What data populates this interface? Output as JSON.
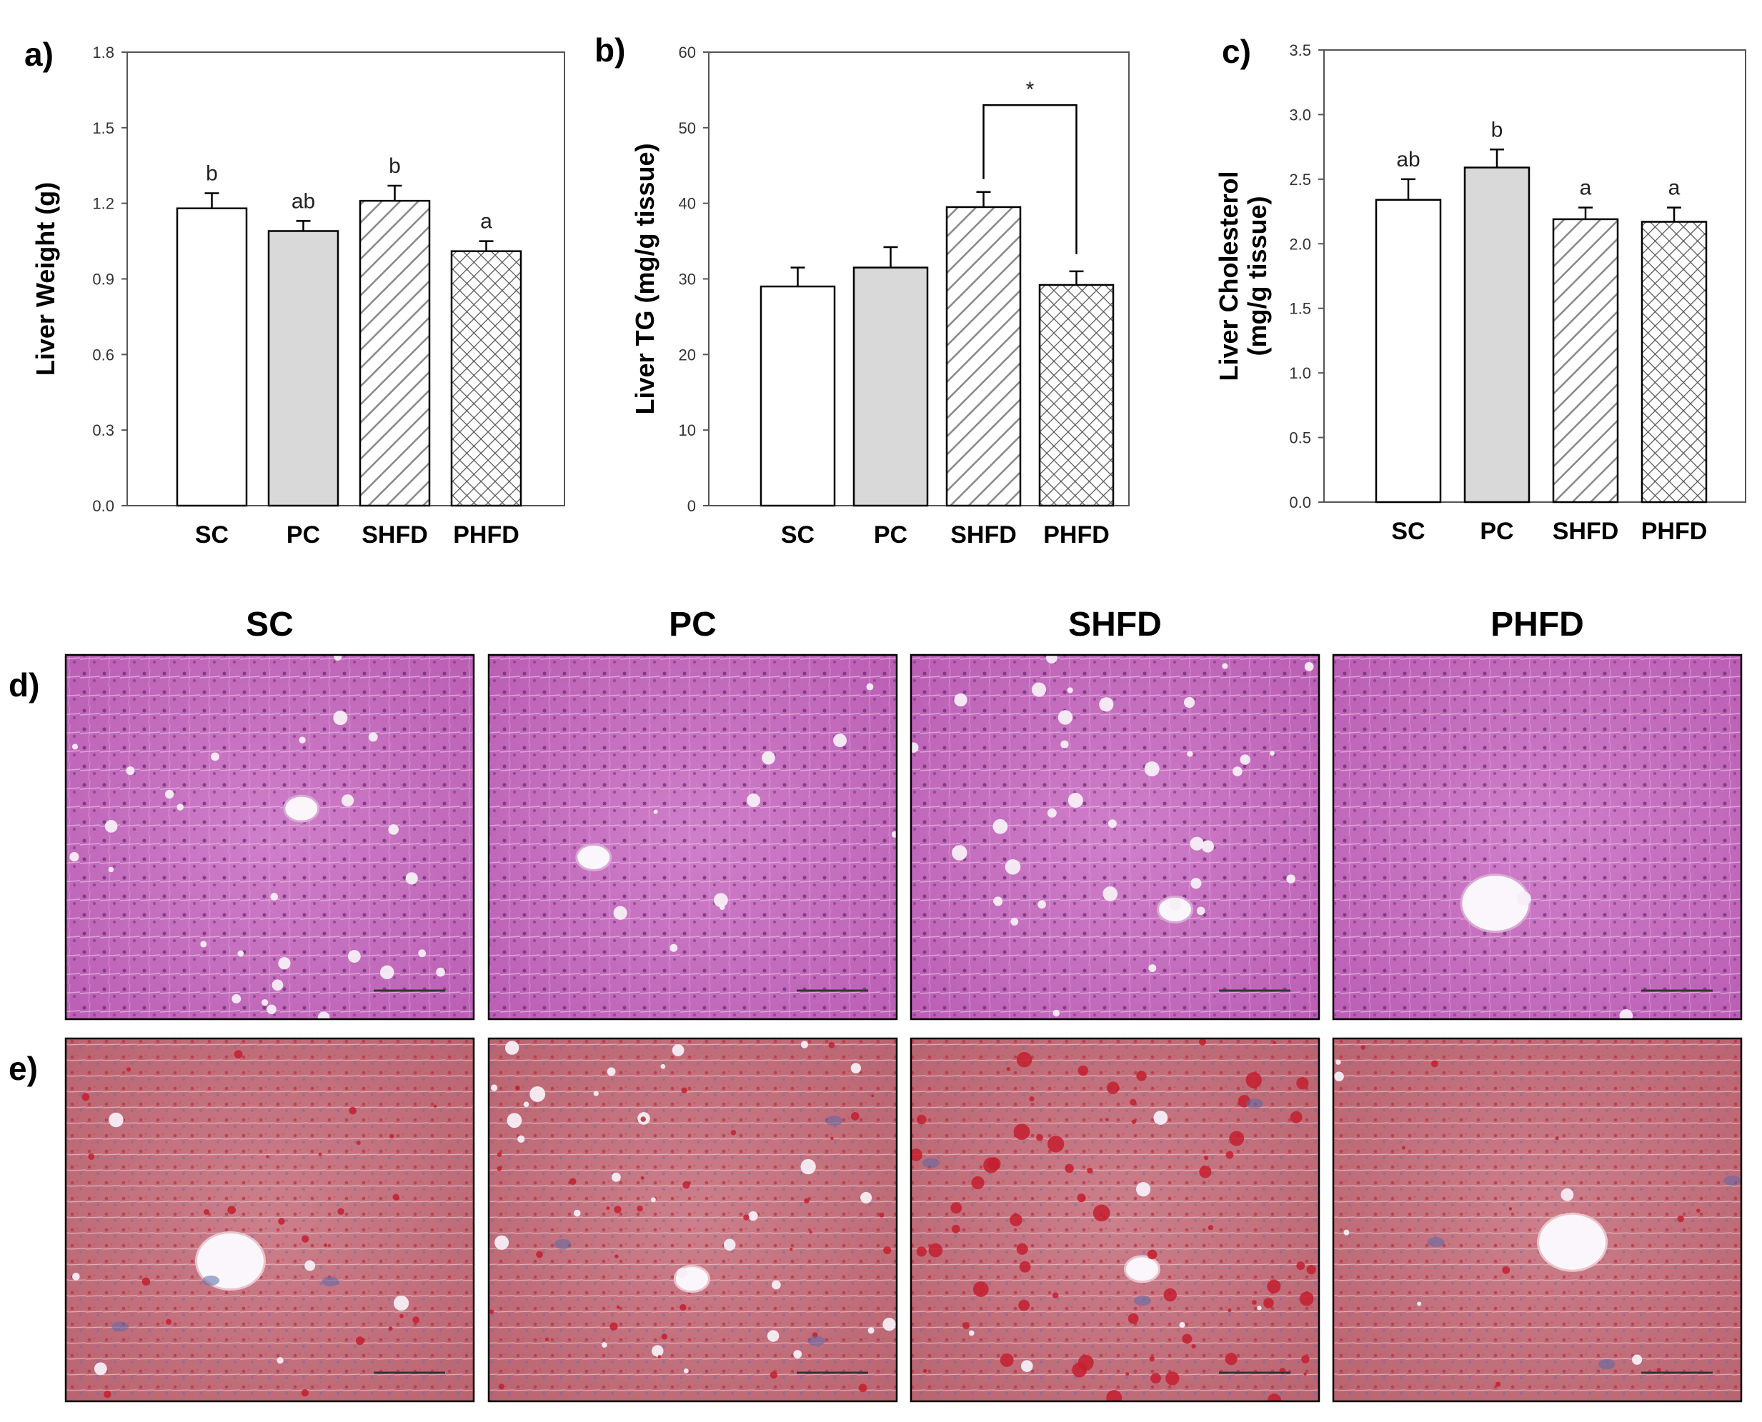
{
  "chart_data": [
    {
      "type": "bar",
      "panel": "a)",
      "ylabel": "Liver Weight (g)",
      "categories": [
        "SC",
        "PC",
        "SHFD",
        "PHFD"
      ],
      "values": [
        1.18,
        1.09,
        1.21,
        1.01
      ],
      "errors": [
        0.06,
        0.04,
        0.06,
        0.04
      ],
      "significance": [
        "b",
        "ab",
        "b",
        "a"
      ],
      "yticks": [
        "0.0",
        "0.3",
        "0.6",
        "0.9",
        "1.2",
        "1.5",
        "1.8"
      ],
      "ylim": [
        0,
        1.8
      ],
      "fills": [
        "white",
        "gray",
        "diagonal",
        "crosshatch"
      ]
    },
    {
      "type": "bar",
      "panel": "b)",
      "ylabel": "Liver TG (mg/g tissue)",
      "categories": [
        "SC",
        "PC",
        "SHFD",
        "PHFD"
      ],
      "values": [
        29,
        31.5,
        39.5,
        29.2
      ],
      "errors": [
        2.5,
        2.7,
        2.0,
        1.8
      ],
      "bracket": {
        "from": 2,
        "to": 3,
        "label": "*",
        "y": 53
      },
      "yticks": [
        "0",
        "10",
        "20",
        "30",
        "40",
        "50",
        "60"
      ],
      "ylim": [
        0,
        60
      ],
      "fills": [
        "white",
        "gray",
        "diagonal",
        "crosshatch"
      ]
    },
    {
      "type": "bar",
      "panel": "c)",
      "ylabel": "Liver Cholesterol",
      "ylabel2": "(mg/g tissue)",
      "categories": [
        "SC",
        "PC",
        "SHFD",
        "PHFD"
      ],
      "values": [
        2.34,
        2.59,
        2.19,
        2.17
      ],
      "errors": [
        0.16,
        0.14,
        0.09,
        0.11
      ],
      "significance": [
        "ab",
        "b",
        "a",
        "a"
      ],
      "yticks": [
        "0.0",
        "0.5",
        "1.0",
        "1.5",
        "2.0",
        "2.5",
        "3.0",
        "3.5"
      ],
      "ylim": [
        0,
        3.5
      ],
      "fills": [
        "white",
        "gray",
        "diagonal",
        "crosshatch"
      ]
    }
  ],
  "histology": {
    "columns": [
      "SC",
      "PC",
      "SHFD",
      "PHFD"
    ],
    "rows": [
      {
        "label": "d)",
        "stain": "hematoxylin-eosin",
        "colors": {
          "base": "#c86fc0",
          "dark": "#8a3c8e",
          "light": "#f2dcf0"
        }
      },
      {
        "label": "e)",
        "stain": "oil-red-o",
        "colors": {
          "base": "#c4707c",
          "dark": "#c41e2e",
          "light": "#f4e6ea",
          "blue": "#5b6aa8"
        }
      }
    ]
  },
  "colors": {
    "bar_gray": "#d9d9d9",
    "outline": "#000000",
    "axis": "#555555"
  }
}
